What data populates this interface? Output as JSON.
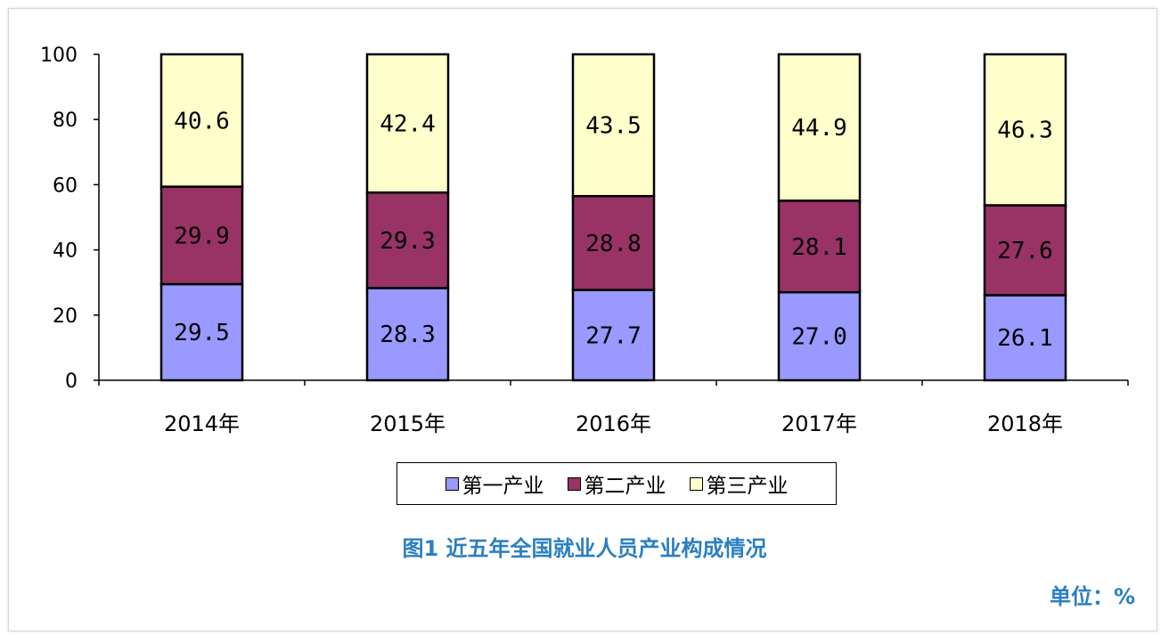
{
  "chart_data": {
    "type": "bar",
    "stacked": true,
    "title": "图1  近五年全国就业人员产业构成情况",
    "unit_label": "单位：%",
    "categories": [
      "2014年",
      "2015年",
      "2016年",
      "2017年",
      "2018年"
    ],
    "ylim": [
      0,
      100
    ],
    "yticks": [
      "0",
      "20",
      "40",
      "60",
      "80",
      "100"
    ],
    "grid": false,
    "legend_position": "bottom",
    "series": [
      {
        "name": "第一产业",
        "color": "#9999ff",
        "values": [
          29.5,
          28.3,
          27.7,
          27.0,
          26.1
        ],
        "labels": [
          "29.5",
          "28.3",
          "27.7",
          "27.0",
          "26.1"
        ]
      },
      {
        "name": "第二产业",
        "color": "#993366",
        "values": [
          29.9,
          29.3,
          28.8,
          28.1,
          27.6
        ],
        "labels": [
          "29.9",
          "29.3",
          "28.8",
          "28.1",
          "27.6"
        ]
      },
      {
        "name": "第三产业",
        "color": "#ffffcc",
        "values": [
          40.6,
          42.4,
          43.5,
          44.9,
          46.3
        ],
        "labels": [
          "40.6",
          "42.4",
          "43.5",
          "44.9",
          "46.3"
        ]
      }
    ]
  }
}
